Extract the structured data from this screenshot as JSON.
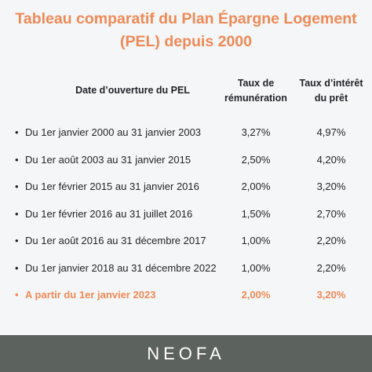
{
  "title": {
    "line1": "Tableau comparatif du Plan Épargne Logement",
    "line2": "(PEL) depuis 2000"
  },
  "header": {
    "date_label": "Date d’ouverture du PEL",
    "rate_line1": "Taux de",
    "rate_line2": "rémunération",
    "loan_line1": "Taux d’intérêt",
    "loan_line2": "du prêt"
  },
  "rows": [
    {
      "date": "Du 1er janvier 2000 au 31 janvier 2003",
      "rate": "3,27%",
      "loan": "4,97%"
    },
    {
      "date": "Du 1er août 2003 au 31 janvier 2015",
      "rate": "2,50%",
      "loan": "4,20%"
    },
    {
      "date": "Du 1er février 2015 au 31 janvier 2016",
      "rate": "2,00%",
      "loan": "3,20%"
    },
    {
      "date": "Du 1er février 2016 au 31 juillet 2016",
      "rate": "1,50%",
      "loan": "2,70%"
    },
    {
      "date": "Du 1er août 2016 au 31 décembre 2017",
      "rate": "1,00%",
      "loan": "2,20%"
    },
    {
      "date": "Du 1er janvier 2018 au 31 décembre 2022",
      "rate": "1,00%",
      "loan": "2,20%"
    },
    {
      "date": "A partir du 1er janvier 2023",
      "rate": "2,00%",
      "loan": "3,20%"
    }
  ],
  "footer": {
    "logo_text": "NEOFA"
  },
  "colors": {
    "accent": "#ef8a57",
    "text": "#1f2328",
    "footer_bg": "#5c625d",
    "background": "#f5f6f7"
  }
}
